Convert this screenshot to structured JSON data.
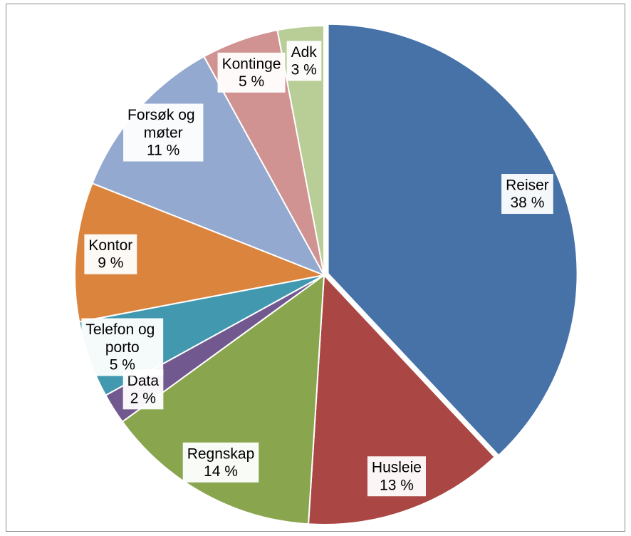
{
  "chart_data": {
    "type": "pie",
    "categories": [
      "Reiser",
      "Husleie",
      "Regnskap",
      "Data",
      "Telefon og porto",
      "Kontor",
      "Forsøk og møter",
      "Kontinge",
      "Adk"
    ],
    "values": [
      38,
      13,
      14,
      2,
      5,
      9,
      11,
      5,
      3
    ],
    "value_labels": [
      "38 %",
      "13 %",
      "14 %",
      "2 %",
      "5 %",
      "9 %",
      "11 %",
      "5 %",
      "3 %"
    ],
    "colors": [
      "#4672a8",
      "#aa4643",
      "#89a54e",
      "#71588f",
      "#4198af",
      "#db843d",
      "#93a9cf",
      "#d19392",
      "#b9cd96"
    ]
  }
}
